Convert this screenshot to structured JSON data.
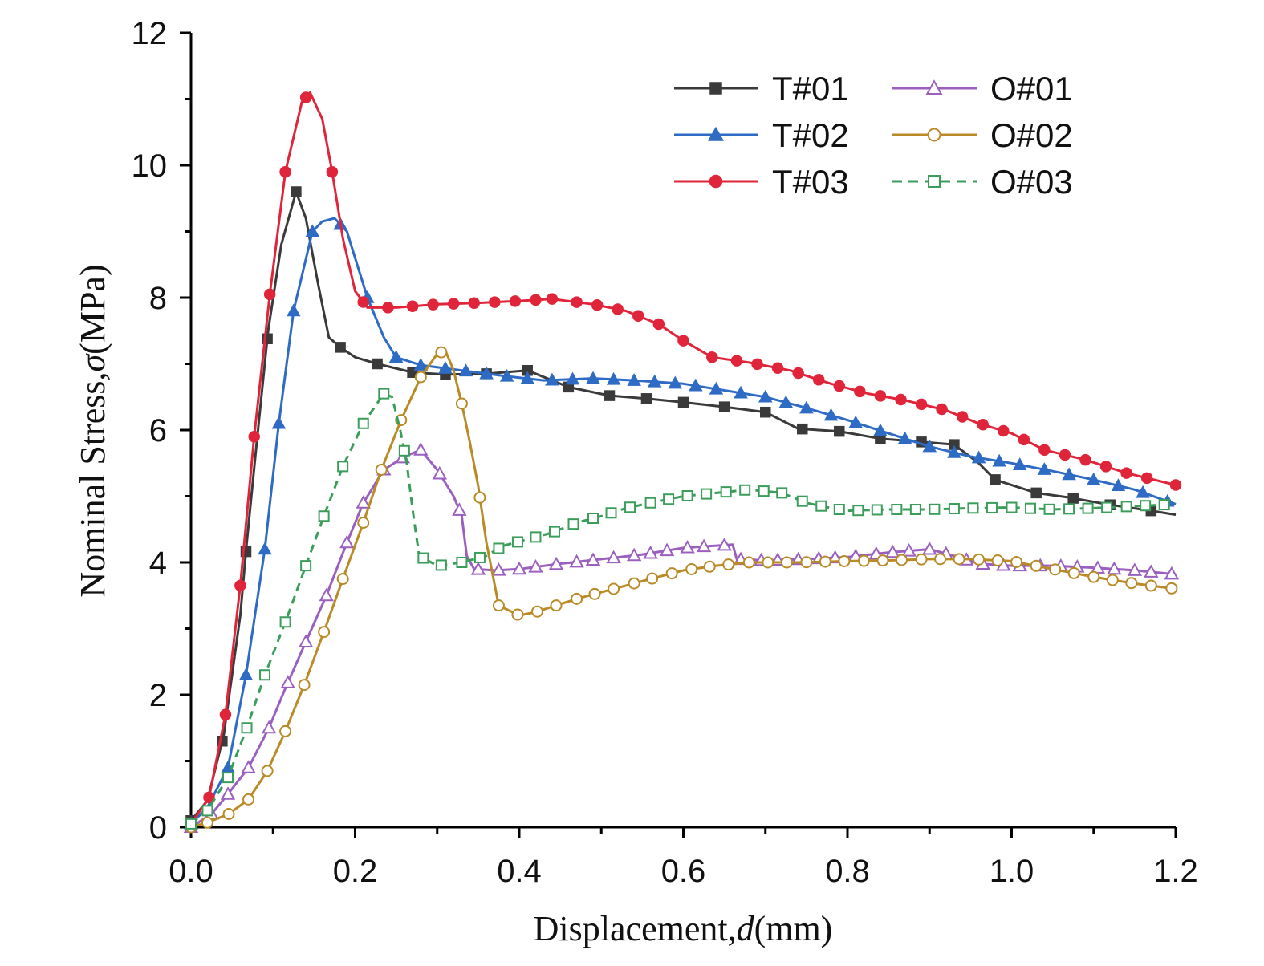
{
  "chart_data": {
    "type": "line",
    "xlabel_prefix": "Displacement,",
    "xlabel_var": "d",
    "xlabel_unit": "(mm)",
    "ylabel_prefix": "Nominal Stress,",
    "ylabel_var": "σ",
    "ylabel_unit": "(MPa)",
    "xlim": [
      0.0,
      1.2
    ],
    "ylim": [
      0,
      12
    ],
    "xticks": [
      "0.0",
      "0.2",
      "0.4",
      "0.6",
      "0.8",
      "1.0",
      "1.2"
    ],
    "yticks": [
      "0",
      "2",
      "4",
      "6",
      "8",
      "10",
      "12"
    ],
    "grid": false,
    "legend_position": "top-right",
    "series": [
      {
        "name": "T#01",
        "color": "#3a3a3a",
        "marker": "square",
        "filled": true,
        "dash": false,
        "points": [
          [
            0,
            0.1
          ],
          [
            0.02,
            0.4
          ],
          [
            0.04,
            1.4
          ],
          [
            0.06,
            3.2
          ],
          [
            0.068,
            4.3
          ],
          [
            0.08,
            5.8
          ],
          [
            0.094,
            7.5
          ],
          [
            0.11,
            8.8
          ],
          [
            0.128,
            9.6
          ],
          [
            0.14,
            9.2
          ],
          [
            0.155,
            8.2
          ],
          [
            0.168,
            7.4
          ],
          [
            0.182,
            7.25
          ],
          [
            0.2,
            7.1
          ],
          [
            0.227,
            7.0
          ],
          [
            0.27,
            6.87
          ],
          [
            0.31,
            6.84
          ],
          [
            0.36,
            6.85
          ],
          [
            0.41,
            6.9
          ],
          [
            0.46,
            6.65
          ],
          [
            0.51,
            6.52
          ],
          [
            0.56,
            6.47
          ],
          [
            0.6,
            6.42
          ],
          [
            0.65,
            6.35
          ],
          [
            0.7,
            6.27
          ],
          [
            0.74,
            6.02
          ],
          [
            0.79,
            5.98
          ],
          [
            0.84,
            5.87
          ],
          [
            0.89,
            5.82
          ],
          [
            0.93,
            5.78
          ],
          [
            0.96,
            5.5
          ],
          [
            0.98,
            5.25
          ],
          [
            1.03,
            5.05
          ],
          [
            1.07,
            4.98
          ],
          [
            1.12,
            4.87
          ],
          [
            1.17,
            4.78
          ],
          [
            1.2,
            4.72
          ]
        ],
        "marker_x": [
          0,
          0.038,
          0.067,
          0.093,
          0.128,
          0.182,
          0.227,
          0.27,
          0.31,
          0.36,
          0.41,
          0.46,
          0.51,
          0.555,
          0.6,
          0.65,
          0.7,
          0.745,
          0.79,
          0.84,
          0.89,
          0.93,
          0.98,
          1.03,
          1.075,
          1.12,
          1.17
        ]
      },
      {
        "name": "T#02",
        "color": "#2e6bc4",
        "marker": "triangle",
        "filled": true,
        "dash": false,
        "points": [
          [
            0,
            0.05
          ],
          [
            0.02,
            0.3
          ],
          [
            0.045,
            0.9
          ],
          [
            0.067,
            2.3
          ],
          [
            0.09,
            4.2
          ],
          [
            0.107,
            6.1
          ],
          [
            0.125,
            7.8
          ],
          [
            0.148,
            9.0
          ],
          [
            0.16,
            9.15
          ],
          [
            0.175,
            9.2
          ],
          [
            0.19,
            9.0
          ],
          [
            0.205,
            8.4
          ],
          [
            0.215,
            8.0
          ],
          [
            0.235,
            7.4
          ],
          [
            0.25,
            7.1
          ],
          [
            0.28,
            6.98
          ],
          [
            0.33,
            6.9
          ],
          [
            0.38,
            6.82
          ],
          [
            0.43,
            6.75
          ],
          [
            0.49,
            6.78
          ],
          [
            0.54,
            6.75
          ],
          [
            0.6,
            6.7
          ],
          [
            0.65,
            6.6
          ],
          [
            0.7,
            6.5
          ],
          [
            0.745,
            6.35
          ],
          [
            0.8,
            6.15
          ],
          [
            0.85,
            5.95
          ],
          [
            0.9,
            5.75
          ],
          [
            0.95,
            5.6
          ],
          [
            1.0,
            5.5
          ],
          [
            1.05,
            5.38
          ],
          [
            1.1,
            5.25
          ],
          [
            1.15,
            5.1
          ],
          [
            1.2,
            4.88
          ]
        ],
        "marker_x": [
          0,
          0.045,
          0.067,
          0.09,
          0.107,
          0.125,
          0.148,
          0.182,
          0.215,
          0.25,
          0.28,
          0.31,
          0.335,
          0.36,
          0.385,
          0.41,
          0.44,
          0.465,
          0.49,
          0.515,
          0.54,
          0.565,
          0.59,
          0.615,
          0.64,
          0.67,
          0.7,
          0.725,
          0.75,
          0.78,
          0.81,
          0.84,
          0.87,
          0.9,
          0.93,
          0.96,
          0.985,
          1.01,
          1.04,
          1.07,
          1.1,
          1.13,
          1.16,
          1.19
        ]
      },
      {
        "name": "T#03",
        "color": "#e0253a",
        "marker": "circle",
        "filled": true,
        "dash": false,
        "points": [
          [
            0,
            0.05
          ],
          [
            0.022,
            0.45
          ],
          [
            0.042,
            1.7
          ],
          [
            0.06,
            3.65
          ],
          [
            0.077,
            5.9
          ],
          [
            0.096,
            8.05
          ],
          [
            0.115,
            9.9
          ],
          [
            0.135,
            10.95
          ],
          [
            0.145,
            11.1
          ],
          [
            0.16,
            10.7
          ],
          [
            0.172,
            9.9
          ],
          [
            0.185,
            8.9
          ],
          [
            0.2,
            8.1
          ],
          [
            0.215,
            7.85
          ],
          [
            0.25,
            7.85
          ],
          [
            0.3,
            7.9
          ],
          [
            0.35,
            7.92
          ],
          [
            0.4,
            7.95
          ],
          [
            0.44,
            7.98
          ],
          [
            0.49,
            7.9
          ],
          [
            0.53,
            7.8
          ],
          [
            0.57,
            7.6
          ],
          [
            0.6,
            7.35
          ],
          [
            0.635,
            7.1
          ],
          [
            0.68,
            7.02
          ],
          [
            0.73,
            6.9
          ],
          [
            0.78,
            6.7
          ],
          [
            0.825,
            6.55
          ],
          [
            0.87,
            6.45
          ],
          [
            0.92,
            6.3
          ],
          [
            0.96,
            6.1
          ],
          [
            1.0,
            5.95
          ],
          [
            1.04,
            5.7
          ],
          [
            1.09,
            5.55
          ],
          [
            1.14,
            5.35
          ],
          [
            1.2,
            5.17
          ]
        ],
        "marker_x": [
          0.022,
          0.042,
          0.06,
          0.077,
          0.096,
          0.115,
          0.14,
          0.172,
          0.21,
          0.24,
          0.27,
          0.295,
          0.32,
          0.345,
          0.37,
          0.395,
          0.42,
          0.44,
          0.47,
          0.495,
          0.52,
          0.545,
          0.57,
          0.6,
          0.635,
          0.665,
          0.69,
          0.715,
          0.74,
          0.765,
          0.79,
          0.815,
          0.84,
          0.865,
          0.89,
          0.915,
          0.94,
          0.965,
          0.99,
          1.015,
          1.04,
          1.065,
          1.09,
          1.115,
          1.14,
          1.165,
          1.2
        ]
      },
      {
        "name": "O#01",
        "color": "#9b5fc0",
        "marker": "triangle",
        "filled": false,
        "dash": false,
        "points": [
          [
            0,
            0
          ],
          [
            0.025,
            0.2
          ],
          [
            0.045,
            0.5
          ],
          [
            0.07,
            0.9
          ],
          [
            0.095,
            1.5
          ],
          [
            0.115,
            2.1
          ],
          [
            0.14,
            2.8
          ],
          [
            0.165,
            3.5
          ],
          [
            0.19,
            4.3
          ],
          [
            0.21,
            4.9
          ],
          [
            0.235,
            5.4
          ],
          [
            0.26,
            5.6
          ],
          [
            0.28,
            5.7
          ],
          [
            0.3,
            5.4
          ],
          [
            0.32,
            5.0
          ],
          [
            0.33,
            4.7
          ],
          [
            0.336,
            4.1
          ],
          [
            0.345,
            3.9
          ],
          [
            0.37,
            3.88
          ],
          [
            0.4,
            3.9
          ],
          [
            0.45,
            3.98
          ],
          [
            0.5,
            4.05
          ],
          [
            0.55,
            4.12
          ],
          [
            0.6,
            4.22
          ],
          [
            0.66,
            4.27
          ],
          [
            0.665,
            4.05
          ],
          [
            0.7,
            4.03
          ],
          [
            0.75,
            4.05
          ],
          [
            0.8,
            4.08
          ],
          [
            0.85,
            4.15
          ],
          [
            0.9,
            4.2
          ],
          [
            0.93,
            4.1
          ],
          [
            0.96,
            3.98
          ],
          [
            1.0,
            3.95
          ],
          [
            1.05,
            3.95
          ],
          [
            1.1,
            3.92
          ],
          [
            1.15,
            3.88
          ],
          [
            1.2,
            3.82
          ]
        ],
        "marker_x": [
          0,
          0.025,
          0.045,
          0.07,
          0.095,
          0.118,
          0.14,
          0.165,
          0.19,
          0.21,
          0.235,
          0.258,
          0.28,
          0.303,
          0.327,
          0.35,
          0.375,
          0.4,
          0.42,
          0.445,
          0.47,
          0.49,
          0.515,
          0.54,
          0.56,
          0.58,
          0.605,
          0.625,
          0.65,
          0.67,
          0.695,
          0.715,
          0.74,
          0.765,
          0.785,
          0.81,
          0.835,
          0.855,
          0.875,
          0.9,
          0.92,
          0.945,
          0.965,
          0.99,
          1.01,
          1.035,
          1.06,
          1.08,
          1.105,
          1.125,
          1.15,
          1.17,
          1.195
        ]
      },
      {
        "name": "O#02",
        "color": "#b98a25",
        "marker": "circle",
        "filled": false,
        "dash": false,
        "points": [
          [
            0,
            0
          ],
          [
            0.02,
            0.07
          ],
          [
            0.046,
            0.2
          ],
          [
            0.07,
            0.42
          ],
          [
            0.093,
            0.85
          ],
          [
            0.115,
            1.45
          ],
          [
            0.138,
            2.15
          ],
          [
            0.162,
            2.95
          ],
          [
            0.185,
            3.75
          ],
          [
            0.21,
            4.6
          ],
          [
            0.232,
            5.4
          ],
          [
            0.256,
            6.15
          ],
          [
            0.28,
            6.8
          ],
          [
            0.3,
            7.15
          ],
          [
            0.31,
            7.2
          ],
          [
            0.32,
            6.9
          ],
          [
            0.33,
            6.4
          ],
          [
            0.34,
            5.8
          ],
          [
            0.35,
            5.15
          ],
          [
            0.36,
            4.3
          ],
          [
            0.375,
            3.35
          ],
          [
            0.4,
            3.2
          ],
          [
            0.42,
            3.25
          ],
          [
            0.445,
            3.35
          ],
          [
            0.47,
            3.45
          ],
          [
            0.5,
            3.55
          ],
          [
            0.53,
            3.65
          ],
          [
            0.56,
            3.75
          ],
          [
            0.6,
            3.88
          ],
          [
            0.64,
            3.95
          ],
          [
            0.68,
            4.0
          ],
          [
            0.74,
            4.0
          ],
          [
            0.8,
            4.02
          ],
          [
            0.85,
            4.03
          ],
          [
            0.9,
            4.05
          ],
          [
            0.95,
            4.05
          ],
          [
            1.0,
            4.02
          ],
          [
            1.05,
            3.9
          ],
          [
            1.1,
            3.78
          ],
          [
            1.15,
            3.68
          ],
          [
            1.2,
            3.6
          ]
        ],
        "marker_x": [
          0,
          0.02,
          0.046,
          0.07,
          0.093,
          0.115,
          0.138,
          0.162,
          0.185,
          0.21,
          0.232,
          0.256,
          0.28,
          0.305,
          0.33,
          0.352,
          0.375,
          0.398,
          0.422,
          0.445,
          0.47,
          0.492,
          0.515,
          0.54,
          0.562,
          0.586,
          0.61,
          0.632,
          0.655,
          0.68,
          0.703,
          0.726,
          0.75,
          0.773,
          0.796,
          0.82,
          0.843,
          0.866,
          0.89,
          0.913,
          0.936,
          0.96,
          0.983,
          1.006,
          1.03,
          1.053,
          1.076,
          1.1,
          1.123,
          1.146,
          1.17,
          1.195
        ]
      },
      {
        "name": "O#03",
        "color": "#3a9e5a",
        "marker": "square",
        "filled": false,
        "dash": true,
        "points": [
          [
            0,
            0.05
          ],
          [
            0.02,
            0.25
          ],
          [
            0.045,
            0.75
          ],
          [
            0.068,
            1.5
          ],
          [
            0.09,
            2.3
          ],
          [
            0.115,
            3.1
          ],
          [
            0.14,
            3.95
          ],
          [
            0.162,
            4.7
          ],
          [
            0.185,
            5.45
          ],
          [
            0.21,
            6.1
          ],
          [
            0.235,
            6.55
          ],
          [
            0.245,
            6.5
          ],
          [
            0.255,
            6.0
          ],
          [
            0.263,
            5.5
          ],
          [
            0.27,
            4.8
          ],
          [
            0.278,
            4.1
          ],
          [
            0.3,
            3.95
          ],
          [
            0.33,
            4.0
          ],
          [
            0.36,
            4.1
          ],
          [
            0.38,
            4.25
          ],
          [
            0.41,
            4.35
          ],
          [
            0.44,
            4.45
          ],
          [
            0.47,
            4.6
          ],
          [
            0.5,
            4.7
          ],
          [
            0.53,
            4.82
          ],
          [
            0.56,
            4.9
          ],
          [
            0.6,
            5.0
          ],
          [
            0.64,
            5.05
          ],
          [
            0.68,
            5.1
          ],
          [
            0.72,
            5.05
          ],
          [
            0.75,
            4.9
          ],
          [
            0.78,
            4.82
          ],
          [
            0.8,
            4.78
          ],
          [
            0.85,
            4.8
          ],
          [
            0.9,
            4.8
          ],
          [
            0.95,
            4.82
          ],
          [
            1.0,
            4.83
          ],
          [
            1.05,
            4.8
          ],
          [
            1.1,
            4.82
          ],
          [
            1.15,
            4.85
          ],
          [
            1.2,
            4.88
          ]
        ],
        "marker_x": [
          0,
          0.02,
          0.045,
          0.068,
          0.09,
          0.115,
          0.14,
          0.162,
          0.185,
          0.21,
          0.235,
          0.26,
          0.283,
          0.305,
          0.33,
          0.352,
          0.375,
          0.398,
          0.42,
          0.443,
          0.466,
          0.49,
          0.512,
          0.535,
          0.56,
          0.582,
          0.605,
          0.628,
          0.652,
          0.675,
          0.698,
          0.72,
          0.745,
          0.768,
          0.79,
          0.813,
          0.836,
          0.86,
          0.883,
          0.906,
          0.93,
          0.953,
          0.976,
          1.0,
          1.023,
          1.046,
          1.07,
          1.093,
          1.116,
          1.14,
          1.163,
          1.186
        ]
      }
    ]
  }
}
